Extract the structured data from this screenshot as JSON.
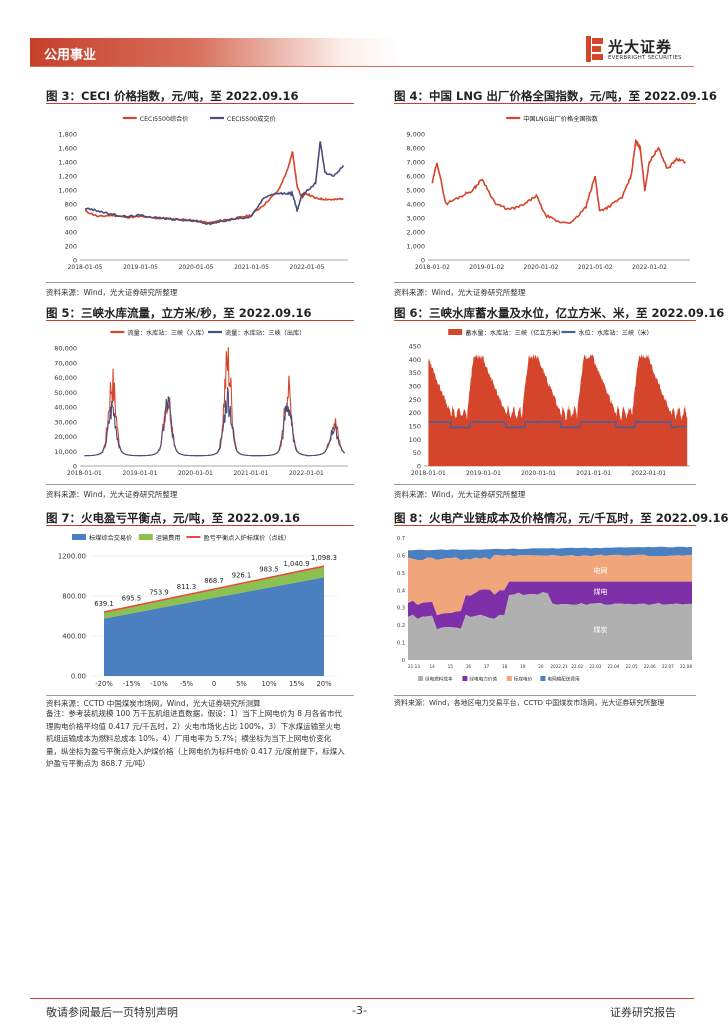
{
  "header": {
    "section": "公用事业",
    "logo_cn": "光大证券",
    "logo_en": "EVERBRIGHT SECURITIES"
  },
  "figures": [
    {
      "title": "图 3：CECI 价格指数，元/吨，至 2022.09.16",
      "source": "资料来源：Wind，光大证券研究所整理"
    },
    {
      "title": "图 4：中国 LNG 出厂价格全国指数，元/吨，至 2022.09.16",
      "source": "资料来源：Wind，光大证券研究所整理"
    },
    {
      "title": "图 5：三峡水库流量，立方米/秒，至 2022.09.16",
      "source": "资料来源：Wind，光大证券研究所整理"
    },
    {
      "title": "图 6：三峡水库蓄水量及水位，亿立方米、米，至 2022.09.16",
      "source": "资料来源：Wind，光大证券研究所整理"
    },
    {
      "title": "图 7：火电盈亏平衡点，元/吨，至 2022.09.16",
      "source": "资料来源：CCTD 中国煤炭市场网，Wind，光大证券研究所测算"
    },
    {
      "title": "图 8：火电产业链成本及价格情况，元/千瓦时，至 2022.09.16",
      "source": "资料来源：Wind，各地区电力交易平台，CCTD 中国煤炭市场网，光大证券研究所整理"
    }
  ],
  "note": "备注：参考装机规模 100 万千瓦机组进直数据，假设：1）当下上网电价为 8 月各省市代理购电价格平均值 0.417 元/千瓦时，2）火电市场化占比 100%，3）下水煤运输至火电机组运输成本为燃料总成本 10%，4）厂用电率为 5.7%；横坐标为当下上网电价变化量，纵坐标为盈亏平衡点处入炉煤价格（上网电价为标杆电价 0.417 元/度前提下，标煤入炉盈亏平衡点为 868.7 元/吨）",
  "footer": {
    "left": "敬请参阅最后一页特别声明",
    "center": "-3-",
    "right": "证券研究报告"
  },
  "chart_data": [
    {
      "type": "line",
      "id": "fig3",
      "series": [
        {
          "name": "CECI5500综合价",
          "color": "#d4452b",
          "x": [
            "2018-01-05",
            "2018-04",
            "2018-07",
            "2018-10",
            "2019-01",
            "2019-04",
            "2019-07",
            "2019-10",
            "2020-01",
            "2020-04",
            "2020-07",
            "2020-10",
            "2021-01",
            "2021-04",
            "2021-07",
            "2021-09",
            "2021-10",
            "2021-11",
            "2021-12",
            "2022-01",
            "2022-03",
            "2022-05",
            "2022-07",
            "2022-09"
          ],
          "y": [
            700,
            620,
            640,
            610,
            620,
            600,
            590,
            580,
            560,
            530,
            570,
            600,
            640,
            800,
            1000,
            1300,
            1550,
            1050,
            900,
            950,
            880,
            870,
            860,
            880
          ]
        },
        {
          "name": "CECI5500成交价",
          "color": "#4a4e7a",
          "x": [
            "2018-01-05",
            "2018-04",
            "2018-07",
            "2018-10",
            "2019-01",
            "2019-04",
            "2019-07",
            "2019-10",
            "2020-01",
            "2020-04",
            "2020-07",
            "2020-10",
            "2021-01",
            "2021-04",
            "2021-07",
            "2021-09",
            "2021-10",
            "2021-11",
            "2021-12",
            "2022-01",
            "2022-03",
            "2022-04",
            "2022-05",
            "2022-07",
            "2022-09"
          ],
          "y": [
            740,
            700,
            650,
            620,
            640,
            610,
            590,
            570,
            560,
            510,
            560,
            590,
            620,
            900,
            950,
            950,
            950,
            700,
            930,
            980,
            1100,
            1700,
            1250,
            1200,
            1350
          ]
        }
      ],
      "yticks": [
        "0",
        "200",
        "400",
        "600",
        "800",
        "1,000",
        "1,200",
        "1,400",
        "1,600",
        "1,800"
      ],
      "xticks": [
        "2018-01-05",
        "2019-01-05",
        "2020-01-05",
        "2021-01-05",
        "2022-01-05"
      ],
      "ylim": [
        0,
        1800
      ]
    },
    {
      "type": "line",
      "id": "fig4",
      "series": [
        {
          "name": "中国LNG出厂价格全国指数",
          "color": "#d4452b",
          "x": [
            "2018-01",
            "2018-02",
            "2018-04",
            "2018-07",
            "2018-10",
            "2018-12",
            "2019-03",
            "2019-06",
            "2019-09",
            "2019-12",
            "2020-02",
            "2020-05",
            "2020-08",
            "2020-11",
            "2021-01",
            "2021-02",
            "2021-04",
            "2021-07",
            "2021-09",
            "2021-10",
            "2021-11",
            "2021-12",
            "2022-01",
            "2022-03",
            "2022-05",
            "2022-07",
            "2022-09"
          ],
          "y": [
            5500,
            7000,
            4000,
            4500,
            5000,
            5800,
            4000,
            3600,
            3900,
            4600,
            3200,
            2700,
            2700,
            3800,
            6000,
            3500,
            3800,
            4500,
            6000,
            8500,
            8000,
            5000,
            7000,
            8000,
            6500,
            7200,
            7000
          ]
        }
      ],
      "yticks": [
        "0",
        "1,000",
        "2,000",
        "3,000",
        "4,000",
        "5,000",
        "6,000",
        "7,000",
        "8,000",
        "9,000"
      ],
      "xticks": [
        "2018-01-02",
        "2019-01-02",
        "2020-01-02",
        "2021-01-02",
        "2022-01-02"
      ],
      "ylim": [
        0,
        9000
      ]
    },
    {
      "type": "line",
      "id": "fig5",
      "series": [
        {
          "name": "流量：水库站：三峡（入库）",
          "color": "#d4452b"
        },
        {
          "name": "流量：水库站：三峡（出库）",
          "color": "#4a4e7a"
        }
      ],
      "yticks": [
        "0",
        "10,000",
        "20,000",
        "30,000",
        "40,000",
        "50,000",
        "60,000",
        "70,000",
        "80,000"
      ],
      "xticks": [
        "2018-01-01",
        "2019-01-01",
        "2020-01-01",
        "2021-01-01",
        "2022-01-01"
      ],
      "ylim": [
        0,
        80000
      ],
      "peaks": [
        {
          "x": "2018-07",
          "in": 60000,
          "out": 42000
        },
        {
          "x": "2019-07",
          "in": 50000,
          "out": 45000
        },
        {
          "x": "2020-08",
          "in": 75000,
          "out": 50000
        },
        {
          "x": "2021-09",
          "in": 55000,
          "out": 45000
        },
        {
          "x": "2022-07",
          "in": 32000,
          "out": 27000
        }
      ]
    },
    {
      "type": "area",
      "id": "fig6",
      "series": [
        {
          "name": "蓄水量：水库站：三峡（亿立方米）",
          "color": "#d4452b"
        },
        {
          "name": "水位：水库站：三峡（米）",
          "color": "#4a5e9a"
        }
      ],
      "yticks": [
        "0",
        "50",
        "100",
        "150",
        "200",
        "250",
        "300",
        "350",
        "400",
        "450"
      ],
      "xticks": [
        "2018-01-01",
        "2019-01-01",
        "2020-01-01",
        "2021-01-01",
        "2022-01-01"
      ],
      "ylim": [
        0,
        450
      ]
    },
    {
      "type": "area",
      "id": "fig7",
      "categories": [
        "-20%",
        "-15%",
        "-10%",
        "-5%",
        "0",
        "5%",
        "10%",
        "15%",
        "20%"
      ],
      "series": [
        {
          "name": "标煤综合交易价",
          "color": "#4a7fc0",
          "values": [
            575,
            626,
            679,
            730,
            782,
            833,
            885,
            935,
            988
          ]
        },
        {
          "name": "运输费用",
          "color": "#8cc152",
          "values": [
            64,
            70,
            75,
            81,
            87,
            93,
            98,
            105,
            110
          ]
        },
        {
          "name": "盈亏平衡点入炉标煤价（点线）",
          "color": "#e74c3c",
          "values": [
            639.1,
            695.5,
            753.9,
            811.3,
            868.7,
            926.1,
            983.5,
            1040.9,
            1098.3
          ]
        }
      ],
      "labels": [
        "639.1",
        "695.5",
        "753.9",
        "811.3",
        "868.7",
        "926.1",
        "983.5",
        "1,040.9",
        "1,098.3"
      ],
      "yticks": [
        "0.00",
        "400.00",
        "800.00",
        "1200.00"
      ],
      "ylim": [
        0,
        1200
      ]
    },
    {
      "type": "area",
      "id": "fig8",
      "legend": [
        "绿电燃料成本",
        "绿电电力价值",
        "标煤电价",
        "电网输配送费用"
      ],
      "annotations": [
        "电网",
        "煤电",
        "煤炭"
      ],
      "yticks": [
        "0",
        "0.1",
        "0.2",
        "0.3",
        "0.4",
        "0.5",
        "0.6",
        "0.7"
      ],
      "xticks": [
        "21.13",
        "14",
        "15",
        "16",
        "17",
        "18",
        "19",
        "20",
        "2022.21",
        "22.02",
        "22.03",
        "22.04",
        "22.05",
        "22.06",
        "22.07",
        "22.08"
      ],
      "ylim": [
        0,
        0.7
      ]
    }
  ]
}
